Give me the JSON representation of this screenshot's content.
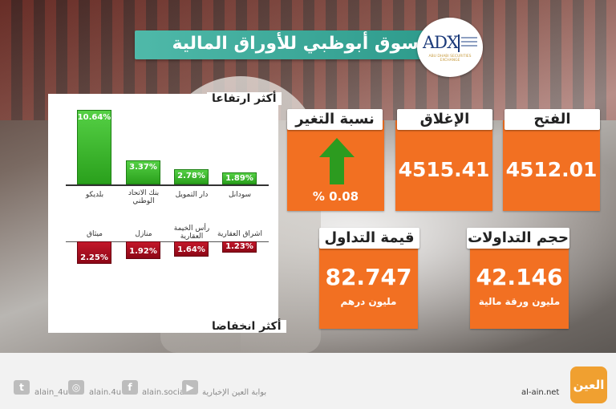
{
  "header": {
    "title": "سوق أبوظبي للأوراق المالية",
    "logo_text": "ADX",
    "logo_subtitle": "ABU DHABI SECURITIES EXCHANGE"
  },
  "gainers": {
    "heading": "أكثر ارتفاعا",
    "items": [
      {
        "name": "بلديكو",
        "value": "10.64%"
      },
      {
        "name": "بنك الاتحاد الوطني",
        "value": "3.37%"
      },
      {
        "name": "دار التمويل",
        "value": "2.78%"
      },
      {
        "name": "سودانل",
        "value": "1.89%"
      }
    ]
  },
  "losers": {
    "heading": "أكثر انخفاضا",
    "items": [
      {
        "name": "ميثاق",
        "value": "2.25%"
      },
      {
        "name": "منازل",
        "value": "1.92%"
      },
      {
        "name": "رأس الخيمة العقارية",
        "value": "1.64%"
      },
      {
        "name": "اشراق العقارية",
        "value": "1.23%"
      }
    ]
  },
  "stats": {
    "open": {
      "label": "الفتح",
      "value": "4512.01"
    },
    "close": {
      "label": "الإغلاق",
      "value": "4515.41"
    },
    "change": {
      "label": "نسبة التغير",
      "value": "% 0.08"
    },
    "volume": {
      "label": "حجم التداولات",
      "value": "42.146",
      "unit": "مليون ورقة مالية"
    },
    "turnover": {
      "label": "قيمة التداول",
      "value": "82.747",
      "unit": "مليون درهم"
    }
  },
  "footer": {
    "twitter": "alain_4u",
    "instagram": "alain.4u",
    "facebook": "alain.social",
    "youtube": "بوابة العين الإخبارية",
    "site": "al-ain.net",
    "brand": "العين"
  },
  "colors": {
    "orange": "#f27022",
    "teal": "#2e9b8c",
    "green": "#2aa01c",
    "red": "#8c0716"
  }
}
